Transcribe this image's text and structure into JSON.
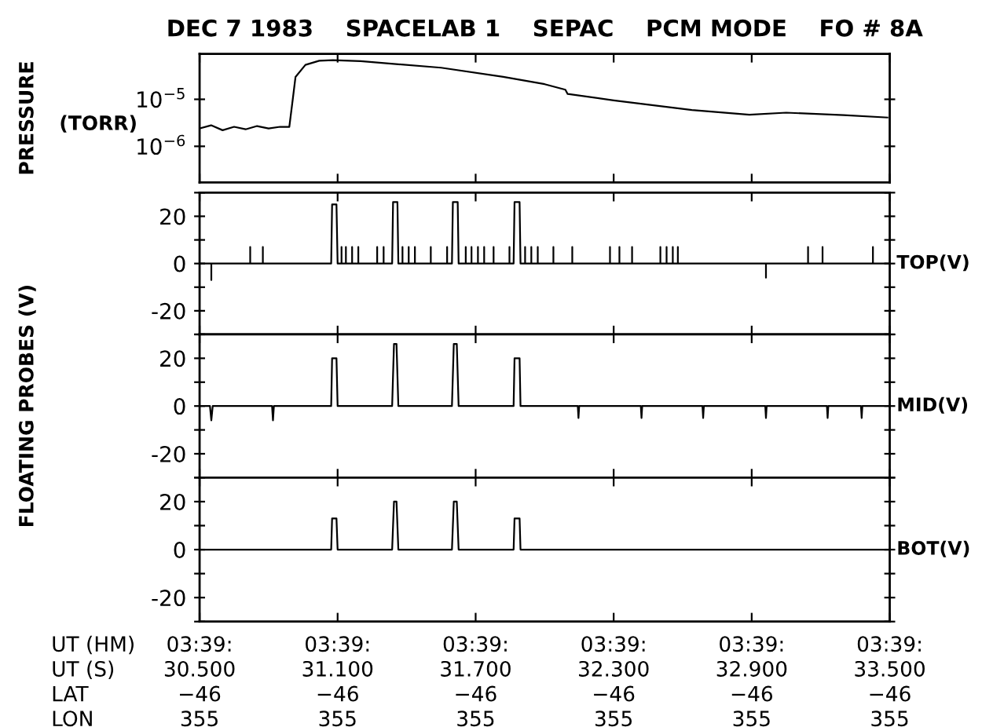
{
  "chart_data": [
    {
      "type": "line",
      "title": "DEC 7 1983    SPACELAB 1    SEPAC    PCM MODE    FO # 8A",
      "ylabel": "PRESSURE",
      "annotations": [
        "(TORR)"
      ],
      "log": true,
      "xlim": [
        30.5,
        33.5
      ],
      "xticks": [
        30.5,
        31.1,
        31.7,
        32.3,
        32.9,
        33.5
      ],
      "tick_labels": "y",
      "ylim": [
        1.7e-07,
        9.3e-05
      ],
      "yticks": [
        {
          "value": 1e-06,
          "label": "10$^{−6}$"
        },
        {
          "value": 1e-05,
          "label": "10$^{−5}$"
        }
      ],
      "series": [
        {
          "color": "#000000",
          "x": [
            30.5,
            30.55,
            30.6,
            30.65,
            30.7,
            30.75,
            30.8,
            30.85,
            30.89,
            30.905,
            30.917,
            30.96,
            31.02,
            31.08,
            31.2,
            31.55,
            31.82,
            32.0,
            32.09,
            32.1,
            32.3,
            32.64,
            32.89,
            33.05,
            33.3,
            33.49
          ],
          "values": [
            2.4e-06,
            2.8e-06,
            2.2e-06,
            2.6e-06,
            2.3e-06,
            2.7e-06,
            2.4e-06,
            2.6e-06,
            2.6e-06,
            1e-05,
            3e-05,
            5.4e-05,
            6.6e-05,
            6.8e-05,
            6.5e-05,
            4.7e-05,
            3e-05,
            2.1e-05,
            1.6e-05,
            1.3e-05,
            9.5e-06,
            5.9e-06,
            4.7e-06,
            5.2e-06,
            4.6e-06,
            4.1e-06
          ]
        }
      ]
    },
    {
      "type": "line",
      "xlim": [
        30.5,
        33.5
      ],
      "xticks": [
        30.5,
        31.1,
        31.7,
        32.3,
        32.9,
        33.5
      ],
      "tick_labels": "y",
      "ylim": [
        -30,
        30
      ],
      "yticks": [
        {
          "value": -30,
          "label": null
        },
        -20,
        {
          "value": -10,
          "label": null
        },
        0,
        {
          "value": 10,
          "label": null
        },
        20,
        {
          "value": 30,
          "label": null
        }
      ],
      "series": [
        {
          "name": "TOP(V)",
          "color": "#000000",
          "x": [
            30.5,
            30.551,
            30.551,
            30.551,
            30.72,
            30.72,
            30.72,
            30.775,
            30.775,
            30.775,
            31.072,
            31.076,
            31.095,
            31.1,
            31.117,
            31.117,
            31.117,
            31.136,
            31.136,
            31.136,
            31.163,
            31.163,
            31.163,
            31.19,
            31.19,
            31.19,
            31.272,
            31.272,
            31.272,
            31.3,
            31.3,
            31.3,
            31.337,
            31.341,
            31.36,
            31.364,
            31.382,
            31.382,
            31.382,
            31.409,
            31.409,
            31.409,
            31.436,
            31.436,
            31.436,
            31.505,
            31.505,
            31.505,
            31.576,
            31.576,
            31.576,
            31.597,
            31.601,
            31.622,
            31.626,
            31.657,
            31.657,
            31.657,
            31.682,
            31.682,
            31.682,
            31.71,
            31.71,
            31.71,
            31.737,
            31.737,
            31.737,
            31.778,
            31.778,
            31.778,
            31.847,
            31.847,
            31.847,
            31.865,
            31.869,
            31.891,
            31.895,
            31.915,
            31.915,
            31.915,
            31.942,
            31.942,
            31.942,
            31.97,
            31.97,
            31.97,
            32.038,
            32.038,
            32.038,
            32.12,
            32.12,
            32.12,
            32.284,
            32.284,
            32.284,
            32.325,
            32.325,
            32.325,
            32.38,
            32.38,
            32.38,
            32.503,
            32.503,
            32.503,
            32.53,
            32.53,
            32.53,
            32.557,
            32.557,
            32.557,
            32.579,
            32.579,
            32.579,
            32.962,
            32.962,
            32.962,
            33.145,
            33.145,
            33.145,
            33.208,
            33.208,
            33.208,
            33.427,
            33.427,
            33.427,
            33.5
          ],
          "values": [
            0,
            0,
            -7,
            0,
            0,
            7,
            0,
            0,
            7,
            0,
            0,
            25,
            25,
            0,
            0,
            7,
            0,
            0,
            7,
            0,
            0,
            7,
            0,
            0,
            7,
            0,
            0,
            7,
            0,
            0,
            7,
            0,
            0,
            26,
            26,
            0,
            0,
            7,
            0,
            0,
            7,
            0,
            0,
            7,
            0,
            0,
            7,
            0,
            0,
            7,
            0,
            0,
            26,
            26,
            0,
            0,
            7,
            0,
            0,
            7,
            0,
            0,
            7,
            0,
            0,
            7,
            0,
            0,
            7,
            0,
            0,
            7,
            0,
            0,
            26,
            26,
            0,
            0,
            7,
            0,
            0,
            7,
            0,
            0,
            7,
            0,
            0,
            7,
            0,
            0,
            7,
            0,
            0,
            7,
            0,
            0,
            7,
            0,
            0,
            7,
            0,
            0,
            7,
            0,
            0,
            7,
            0,
            0,
            7,
            0,
            0,
            7,
            0,
            0,
            -6,
            0,
            0,
            7,
            0,
            0,
            7,
            0,
            0,
            7,
            0,
            0
          ]
        }
      ]
    },
    {
      "type": "line",
      "ylabel": "FLOATING PROBES (V)",
      "xlim": [
        30.5,
        33.5
      ],
      "xticks": [
        30.5,
        31.1,
        31.7,
        32.3,
        32.9,
        33.5
      ],
      "tick_labels": "y",
      "ylim": [
        -30,
        30
      ],
      "yticks": [
        {
          "value": -30,
          "label": null
        },
        -20,
        {
          "value": -10,
          "label": null
        },
        0,
        {
          "value": 10,
          "label": null
        },
        20,
        {
          "value": 30,
          "label": null
        }
      ],
      "series": [
        {
          "name": "MID(V)",
          "color": "#000000",
          "x": [
            30.5,
            30.545,
            30.551,
            30.557,
            30.815,
            30.819,
            30.823,
            31.072,
            31.076,
            31.095,
            31.1,
            31.337,
            31.345,
            31.356,
            31.364,
            31.597,
            31.605,
            31.618,
            31.626,
            31.865,
            31.869,
            31.891,
            31.895,
            32.144,
            32.147,
            32.15,
            32.418,
            32.421,
            32.424,
            32.686,
            32.689,
            32.692,
            32.959,
            32.962,
            32.965,
            33.227,
            33.23,
            33.233,
            33.375,
            33.378,
            33.381,
            33.5
          ],
          "values": [
            0,
            0,
            -6,
            0,
            0,
            -6,
            0,
            0,
            20,
            20,
            0,
            0,
            26,
            26,
            0,
            0,
            26,
            26,
            0,
            0,
            20,
            20,
            0,
            0,
            -5,
            0,
            0,
            -5,
            0,
            0,
            -5,
            0,
            0,
            -5,
            0,
            0,
            -5,
            0,
            0,
            -5,
            0,
            0
          ]
        }
      ]
    },
    {
      "type": "line",
      "annotations": [
        "UT (HM)",
        "UT (S)",
        "LAT",
        "LON",
        "03:39:",
        "03:39:",
        "03:39:",
        "03:39:",
        "03:39:",
        "03:39:",
        "−46",
        "−46",
        "−46",
        "−46",
        "−46",
        "−46",
        "355",
        "355",
        "355",
        "355",
        "355",
        "355"
      ],
      "xlim": [
        30.5,
        33.5
      ],
      "xticks": [
        {
          "value": 30.5,
          "label": "30.500"
        },
        {
          "value": 31.1,
          "label": "31.100"
        },
        {
          "value": 31.7,
          "label": "31.700"
        },
        {
          "value": 32.3,
          "label": "32.300"
        },
        {
          "value": 32.9,
          "label": "32.900"
        },
        {
          "value": 33.5,
          "label": "33.500"
        }
      ],
      "ylim": [
        -30,
        30
      ],
      "yticks": [
        {
          "value": -30,
          "label": null
        },
        -20,
        {
          "value": -10,
          "label": null
        },
        0,
        {
          "value": 10,
          "label": null
        },
        20,
        {
          "value": 30,
          "label": null
        }
      ],
      "series": [
        {
          "name": "BOT(V)",
          "color": "#000000",
          "x": [
            30.5,
            31.072,
            31.076,
            31.095,
            31.1,
            31.337,
            31.345,
            31.356,
            31.364,
            31.597,
            31.605,
            31.618,
            31.626,
            31.865,
            31.869,
            31.891,
            31.895,
            33.5
          ],
          "values": [
            0,
            0,
            13,
            13,
            0,
            0,
            20,
            20,
            0,
            0,
            20,
            20,
            0,
            0,
            13,
            13,
            0,
            0
          ]
        }
      ]
    }
  ]
}
